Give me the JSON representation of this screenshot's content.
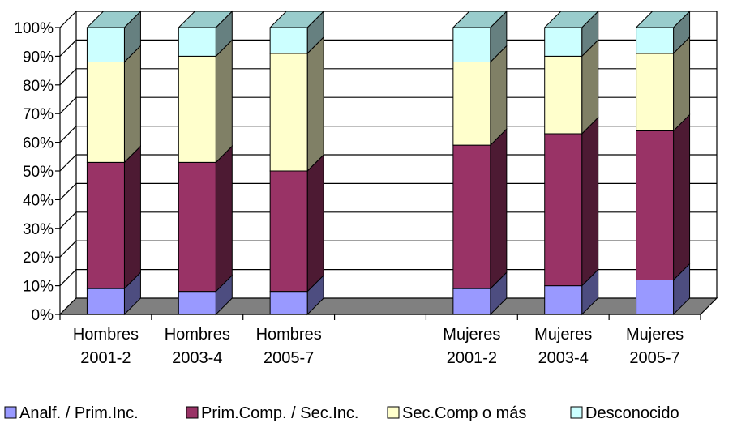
{
  "chart_data": {
    "type": "bar",
    "stacked": true,
    "three_d": true,
    "categories": [
      [
        "Hombres",
        "2001-2"
      ],
      [
        "Hombres",
        "2003-4"
      ],
      [
        "Hombres",
        "2005-7"
      ],
      [
        "",
        ""
      ],
      [
        "Mujeres",
        "2001-2"
      ],
      [
        "Mujeres",
        "2003-4"
      ],
      [
        "Mujeres",
        "2005-7"
      ]
    ],
    "series": [
      {
        "name": "Analf. / Prim.Inc.",
        "values": [
          9,
          8,
          8,
          null,
          9,
          10,
          12
        ]
      },
      {
        "name": "Prim.Comp. / Sec.Inc.",
        "values": [
          44,
          45,
          42,
          null,
          50,
          53,
          52
        ]
      },
      {
        "name": "Sec.Comp o más",
        "values": [
          35,
          37,
          41,
          null,
          29,
          27,
          27
        ]
      },
      {
        "name": "Desconocido",
        "values": [
          12,
          10,
          9,
          null,
          12,
          10,
          9
        ]
      }
    ],
    "colors": {
      "fronts": [
        "#9999ff",
        "#993366",
        "#ffffcc",
        "#ccffff"
      ],
      "sides": [
        "#4d4d80",
        "#4d1a33",
        "#808066",
        "#668080"
      ],
      "tops": [
        "#7a7acc",
        "#7a2952",
        "#ccccaa",
        "#99cccc"
      ],
      "floor": "#808080"
    },
    "y_tick_labels": [
      "0%",
      "10%",
      "20%",
      "30%",
      "40%",
      "50%",
      "60%",
      "70%",
      "80%",
      "90%",
      "100%"
    ],
    "ylim": [
      0,
      100
    ],
    "grid": true,
    "legend": "bottom"
  }
}
